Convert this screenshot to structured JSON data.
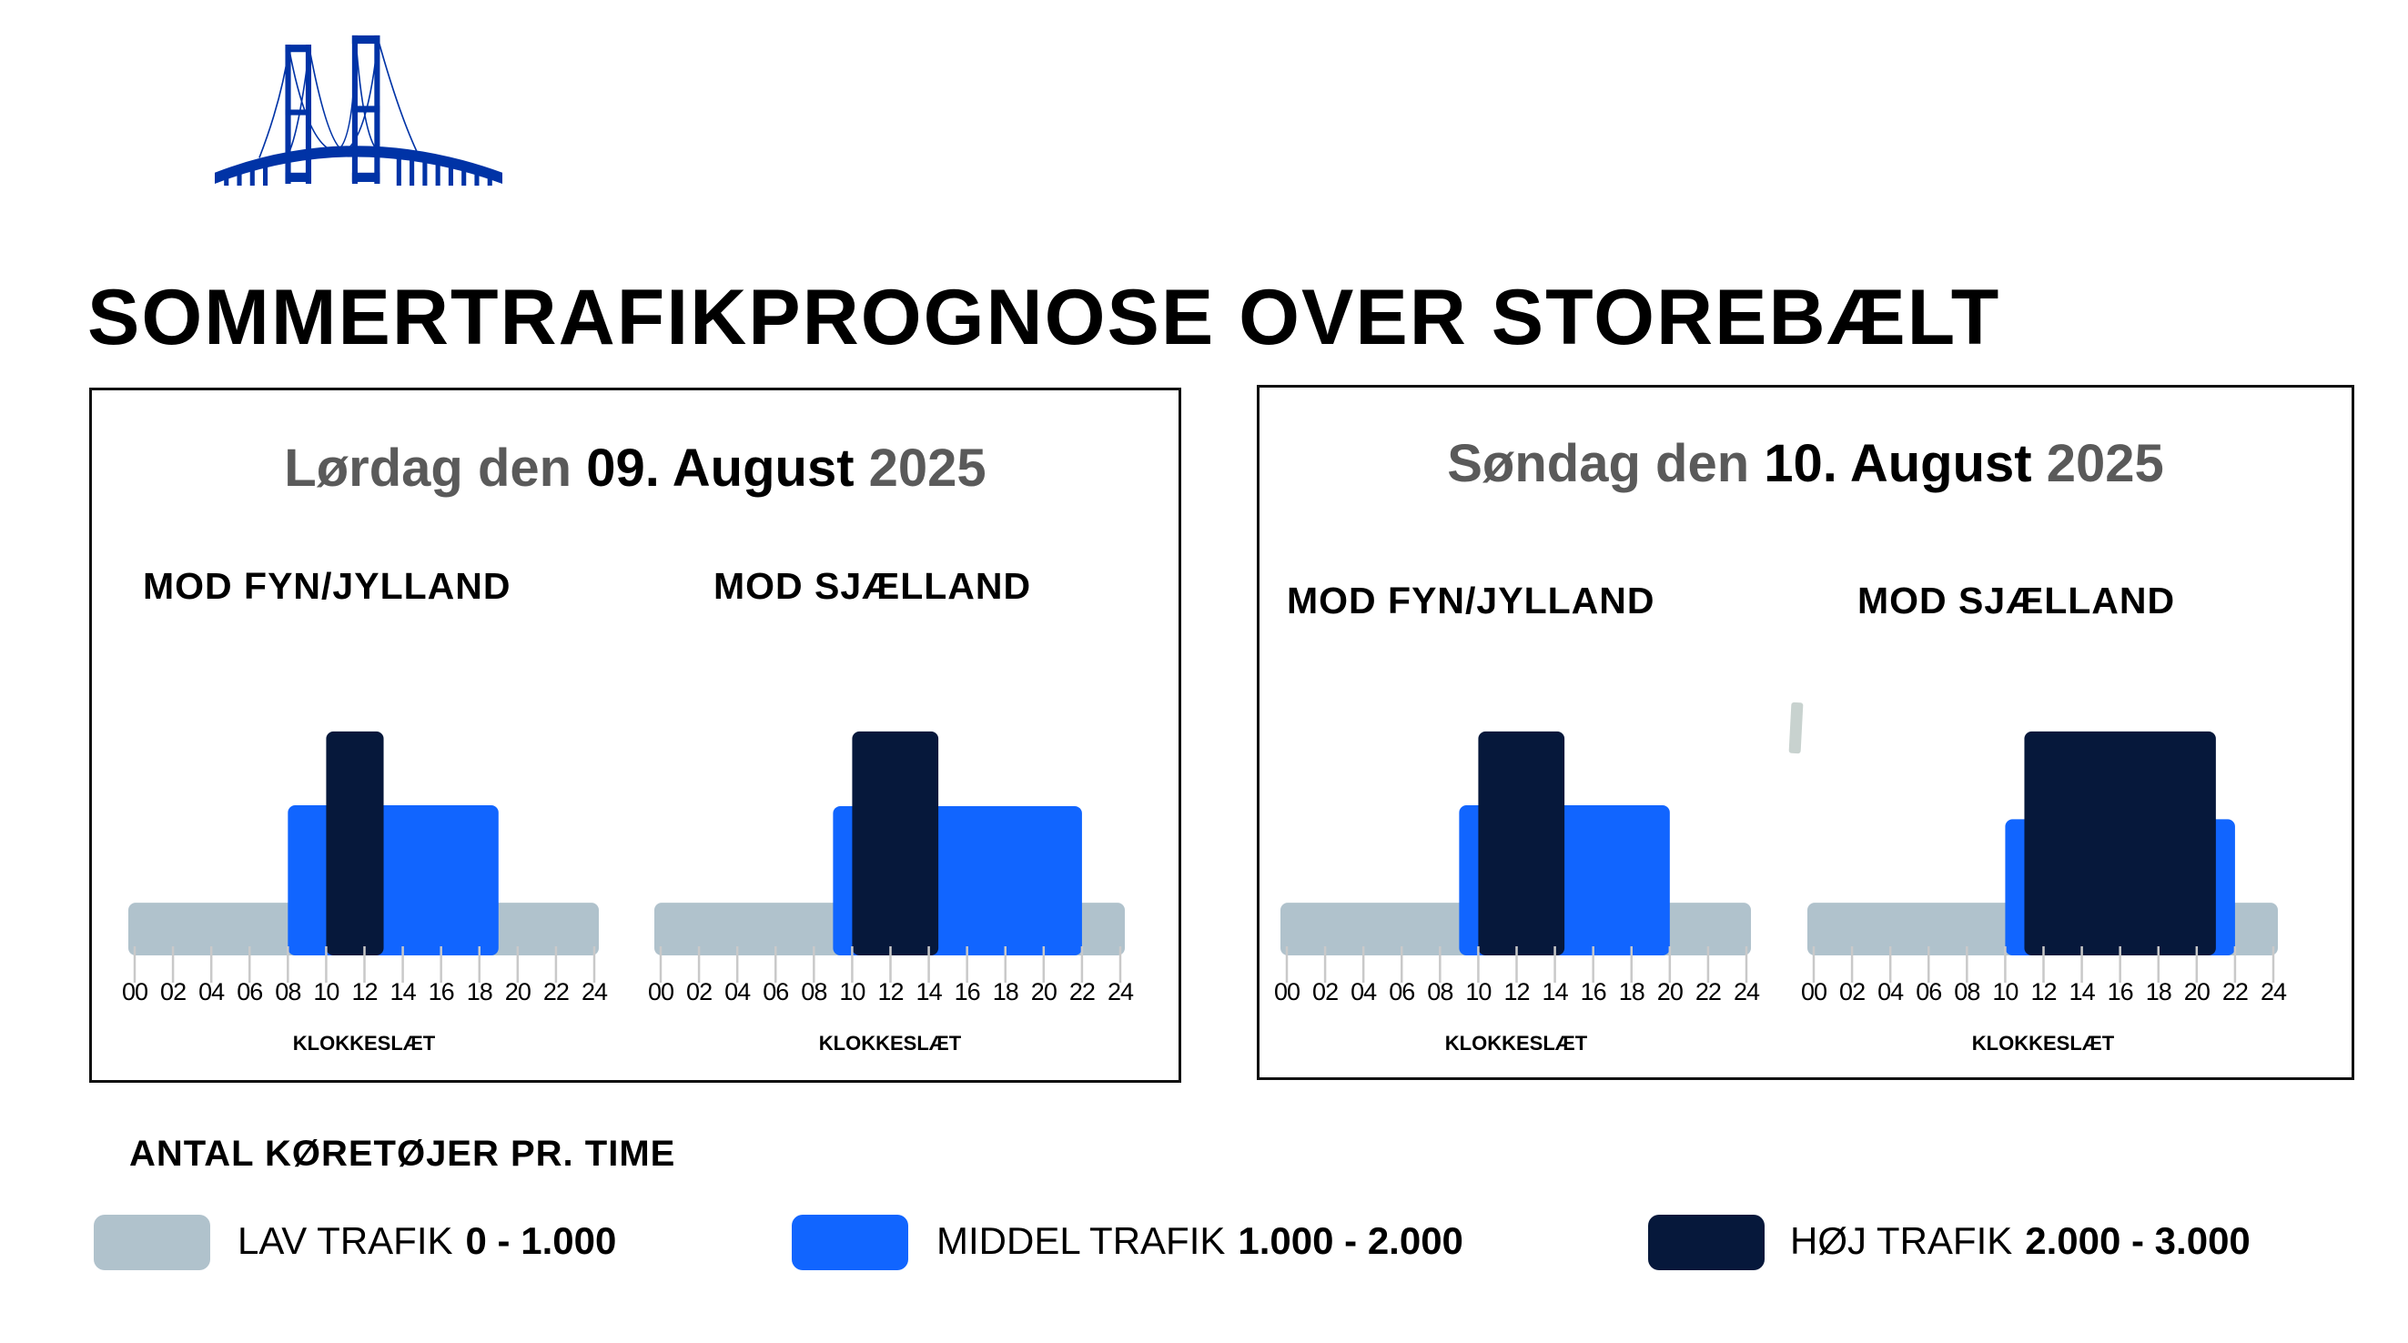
{
  "header": {
    "logo_icon": "bridge-icon",
    "title": "SOMMERTRAFIKPROGNOSE OVER STOREBÆLT"
  },
  "panels": [
    {
      "date_prefix": "Lørdag den ",
      "date_bold": "09. August",
      "date_suffix": " 2025"
    },
    {
      "date_prefix": "Søndag den ",
      "date_bold": "10. August",
      "date_suffix": " 2025"
    }
  ],
  "colors": {
    "lav": "#b0c2cc",
    "middel": "#1165ff",
    "hoj": "#06183b"
  },
  "chart_data": [
    {
      "type": "bar",
      "title": "MOD FYN/JYLLAND",
      "day": "Lørdag den 09. August 2025",
      "xlabel": "KLOKKESLÆT",
      "xlim": [
        0,
        24
      ],
      "tick_labels": [
        "00",
        "02",
        "04",
        "06",
        "08",
        "10",
        "12",
        "14",
        "16",
        "18",
        "20",
        "22",
        "24"
      ],
      "segments": [
        {
          "level": "lav",
          "start": 0,
          "end": 24,
          "value": 600
        },
        {
          "level": "middel",
          "start": 8,
          "end": 19,
          "value": 1710
        },
        {
          "level": "hoj",
          "start": 10,
          "end": 13,
          "value": 2550
        }
      ]
    },
    {
      "type": "bar",
      "title": "MOD SJÆLLAND",
      "day": "Lørdag den 09. August 2025",
      "xlabel": "KLOKKESLÆT",
      "xlim": [
        0,
        24
      ],
      "tick_labels": [
        "00",
        "02",
        "04",
        "06",
        "08",
        "10",
        "12",
        "14",
        "16",
        "18",
        "20",
        "22",
        "24"
      ],
      "segments": [
        {
          "level": "lav",
          "start": 0,
          "end": 24,
          "value": 600
        },
        {
          "level": "middel",
          "start": 9,
          "end": 22,
          "value": 1700
        },
        {
          "level": "hoj",
          "start": 10,
          "end": 14.5,
          "value": 2550
        }
      ]
    },
    {
      "type": "bar",
      "title": "MOD FYN/JYLLAND",
      "day": "Søndag den 10. August 2025",
      "xlabel": "KLOKKESLÆT",
      "xlim": [
        0,
        24
      ],
      "tick_labels": [
        "00",
        "02",
        "04",
        "06",
        "08",
        "10",
        "12",
        "14",
        "16",
        "18",
        "20",
        "22",
        "24"
      ],
      "segments": [
        {
          "level": "lav",
          "start": 0,
          "end": 24,
          "value": 600
        },
        {
          "level": "middel",
          "start": 9,
          "end": 20,
          "value": 1710
        },
        {
          "level": "hoj",
          "start": 10,
          "end": 14.5,
          "value": 2550
        }
      ]
    },
    {
      "type": "bar",
      "title": "MOD SJÆLLAND",
      "day": "Søndag den 10. August 2025",
      "xlabel": "KLOKKESLÆT",
      "xlim": [
        0,
        24
      ],
      "tick_labels": [
        "00",
        "02",
        "04",
        "06",
        "08",
        "10",
        "12",
        "14",
        "16",
        "18",
        "20",
        "22",
        "24"
      ],
      "segments": [
        {
          "level": "lav",
          "start": 0,
          "end": 24,
          "value": 600
        },
        {
          "level": "middel",
          "start": 10,
          "end": 22,
          "value": 1550
        },
        {
          "level": "hoj",
          "start": 11,
          "end": 21,
          "value": 2550
        }
      ]
    }
  ],
  "legend": {
    "title": "ANTAL KØRETØJER PR. TIME",
    "items": [
      {
        "label": "LAV TRAFIK",
        "range": "0 - 1.000"
      },
      {
        "label": "MIDDEL TRAFIK",
        "range": "1.000 - 2.000"
      },
      {
        "label": "HØJ TRAFIK",
        "range": "2.000 - 3.000"
      }
    ]
  }
}
